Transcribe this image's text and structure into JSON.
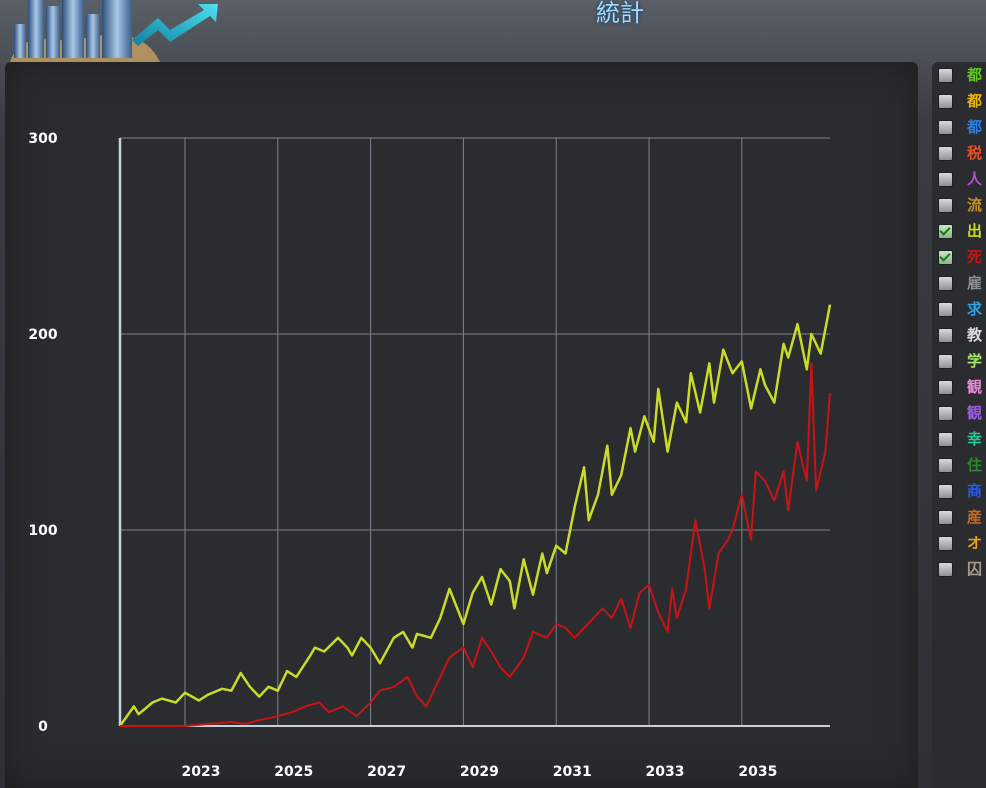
{
  "window": {
    "title": "統計"
  },
  "legend": {
    "items": [
      {
        "label": "都",
        "color": "#5fc81e",
        "checked": false
      },
      {
        "label": "都",
        "color": "#e8b400",
        "checked": false
      },
      {
        "label": "都",
        "color": "#2a7ee8",
        "checked": false
      },
      {
        "label": "税",
        "color": "#e8501e",
        "checked": false
      },
      {
        "label": "人",
        "color": "#b44ee0",
        "checked": false
      },
      {
        "label": "流",
        "color": "#c8901e",
        "checked": false
      },
      {
        "label": "出",
        "color": "#c8dc28",
        "checked": true
      },
      {
        "label": "死",
        "color": "#c81414",
        "checked": true
      },
      {
        "label": "雇",
        "color": "#8a8f94",
        "checked": false
      },
      {
        "label": "求",
        "color": "#2aa4e8",
        "checked": false
      },
      {
        "label": "教",
        "color": "#dcdcdc",
        "checked": false
      },
      {
        "label": "学",
        "color": "#a8e86a",
        "checked": false
      },
      {
        "label": "観",
        "color": "#e88ad8",
        "checked": false
      },
      {
        "label": "観",
        "color": "#9a5ae8",
        "checked": false
      },
      {
        "label": "幸",
        "color": "#28c89a",
        "checked": false
      },
      {
        "label": "住",
        "color": "#2a8a2a",
        "checked": false
      },
      {
        "label": "商",
        "color": "#2a5ae8",
        "checked": false
      },
      {
        "label": "産",
        "color": "#c86a28",
        "checked": false
      },
      {
        "label": "オ",
        "color": "#e8a01e",
        "checked": false
      },
      {
        "label": "囚",
        "color": "#a89a8a",
        "checked": false
      }
    ]
  },
  "chart_data": {
    "type": "line",
    "title": "",
    "xlabel": "",
    "ylabel": "",
    "xlim": [
      2021.6,
      2036.9
    ],
    "ylim": [
      0,
      300
    ],
    "y_ticks": [
      "0",
      "100",
      "200",
      "300"
    ],
    "x_ticks": [
      "2023",
      "2025",
      "2027",
      "2029",
      "2031",
      "2033",
      "2035"
    ],
    "grid": true,
    "series": [
      {
        "color": "#c8dc28",
        "x": [
          2021.6,
          2021.9,
          2022.0,
          2022.3,
          2022.5,
          2022.8,
          2023.0,
          2023.3,
          2023.5,
          2023.8,
          2024.0,
          2024.2,
          2024.4,
          2024.6,
          2024.8,
          2025.0,
          2025.2,
          2025.4,
          2025.7,
          2025.8,
          2026.0,
          2026.3,
          2026.5,
          2026.6,
          2026.8,
          2027.0,
          2027.2,
          2027.5,
          2027.7,
          2027.9,
          2028.0,
          2028.3,
          2028.5,
          2028.7,
          2028.9,
          2029.0,
          2029.2,
          2029.4,
          2029.6,
          2029.8,
          2030.0,
          2030.1,
          2030.3,
          2030.5,
          2030.7,
          2030.8,
          2031.0,
          2031.2,
          2031.4,
          2031.6,
          2031.7,
          2031.9,
          2032.1,
          2032.2,
          2032.4,
          2032.6,
          2032.7,
          2032.9,
          2033.1,
          2033.2,
          2033.4,
          2033.6,
          2033.8,
          2033.9,
          2034.1,
          2034.3,
          2034.4,
          2034.6,
          2034.8,
          2035.0,
          2035.2,
          2035.4,
          2035.5,
          2035.7,
          2035.9,
          2036.0,
          2036.2,
          2036.4,
          2036.5,
          2036.7,
          2036.9
        ],
        "values": [
          0,
          10,
          6,
          12,
          14,
          12,
          17,
          13,
          16,
          19,
          18,
          27,
          20,
          15,
          20,
          18,
          28,
          25,
          36,
          40,
          38,
          45,
          40,
          36,
          45,
          40,
          32,
          45,
          48,
          40,
          47,
          45,
          55,
          70,
          58,
          52,
          68,
          76,
          62,
          80,
          74,
          60,
          85,
          67,
          88,
          78,
          92,
          88,
          112,
          132,
          105,
          118,
          143,
          118,
          128,
          152,
          140,
          158,
          145,
          172,
          140,
          165,
          155,
          180,
          160,
          185,
          165,
          192,
          180,
          186,
          162,
          182,
          174,
          165,
          195,
          188,
          205,
          182,
          200,
          190,
          215
        ]
      },
      {
        "color": "#c81414",
        "x": [
          2021.6,
          2022.0,
          2022.5,
          2023.0,
          2023.5,
          2024.0,
          2024.3,
          2024.6,
          2025.0,
          2025.3,
          2025.6,
          2025.9,
          2026.1,
          2026.4,
          2026.7,
          2027.0,
          2027.2,
          2027.5,
          2027.8,
          2028.0,
          2028.2,
          2028.5,
          2028.7,
          2029.0,
          2029.2,
          2029.4,
          2029.6,
          2029.8,
          2030.0,
          2030.3,
          2030.5,
          2030.8,
          2031.0,
          2031.2,
          2031.4,
          2031.6,
          2031.8,
          2032.0,
          2032.2,
          2032.4,
          2032.6,
          2032.8,
          2033.0,
          2033.2,
          2033.4,
          2033.5,
          2033.6,
          2033.8,
          2034.0,
          2034.2,
          2034.3,
          2034.5,
          2034.7,
          2034.8,
          2035.0,
          2035.2,
          2035.3,
          2035.5,
          2035.7,
          2035.9,
          2036.0,
          2036.2,
          2036.4,
          2036.5,
          2036.6,
          2036.8,
          2036.9
        ],
        "values": [
          0,
          0,
          0,
          0,
          1,
          2,
          1,
          3,
          5,
          7,
          10,
          12,
          7,
          10,
          5,
          12,
          18,
          20,
          25,
          15,
          10,
          25,
          35,
          40,
          30,
          45,
          38,
          30,
          25,
          35,
          48,
          45,
          52,
          50,
          45,
          50,
          55,
          60,
          55,
          65,
          50,
          68,
          72,
          58,
          48,
          70,
          55,
          70,
          105,
          80,
          60,
          88,
          95,
          100,
          118,
          95,
          130,
          125,
          115,
          130,
          110,
          145,
          125,
          185,
          120,
          140,
          170
        ]
      }
    ]
  }
}
